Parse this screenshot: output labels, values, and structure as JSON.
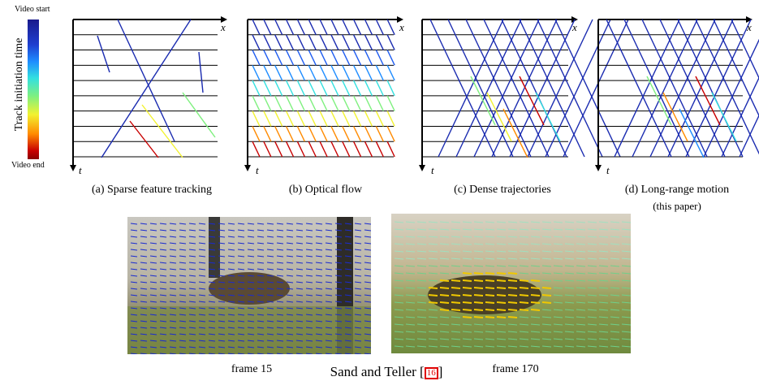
{
  "legend": {
    "top_label": "Video start",
    "bottom_label": "Video end",
    "axis_title": "Track initiation time",
    "colors": [
      "#1a2bb0",
      "#1e8cff",
      "#33e0e0",
      "#7ff07f",
      "#f2f230",
      "#ff8a00",
      "#c80000"
    ]
  },
  "panels": [
    {
      "caption": "(a) Sparse feature tracking",
      "x_label": "x",
      "t_label": "t"
    },
    {
      "caption": "(b) Optical flow",
      "x_label": "x",
      "t_label": "t"
    },
    {
      "caption": "(c) Dense trajectories",
      "x_label": "x",
      "t_label": "t"
    },
    {
      "caption": "(d) Long-range motion",
      "caption_sub": "(this paper)",
      "x_label": "x",
      "t_label": "t"
    }
  ],
  "bottom": {
    "left_frame": "frame 15",
    "right_frame": "frame 170",
    "center_text": "Sand and Teller [",
    "center_cite": "16",
    "center_close": "]"
  }
}
